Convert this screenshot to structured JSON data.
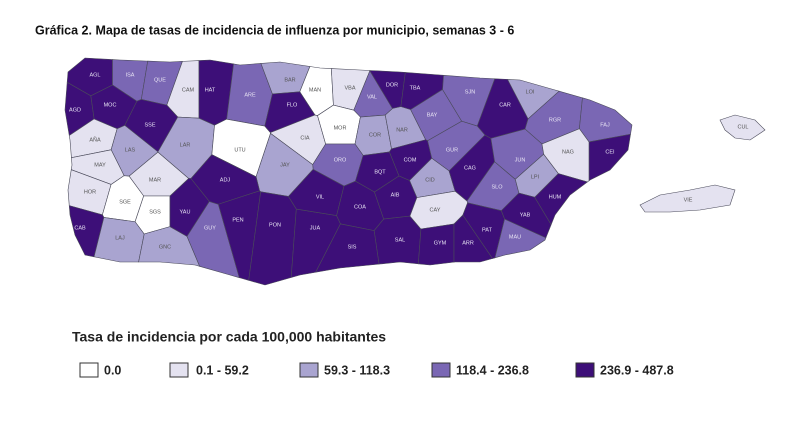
{
  "title": "Gráfica 2. Mapa de tasas de incidencia de influenza por municipio, semanas 3 - 6",
  "legend": {
    "title": "Tasa de incidencia por cada 100,000 habitantes",
    "items": [
      {
        "label": "0.0",
        "color": "#ffffff"
      },
      {
        "label": "0.1 - 59.2",
        "color": "#e4e2f0"
      },
      {
        "label": "59.3 - 118.3",
        "color": "#a9a4d0"
      },
      {
        "label": "118.4 - 236.8",
        "color": "#7a67b4"
      },
      {
        "label": "236.9 - 487.8",
        "color": "#3d0f78"
      }
    ]
  },
  "municipalities": [
    {
      "label": "AGL",
      "class": 4
    },
    {
      "label": "ISA",
      "class": 3
    },
    {
      "label": "QUE",
      "class": 3
    },
    {
      "label": "CAM",
      "class": 1
    },
    {
      "label": "HAT",
      "class": 4
    },
    {
      "label": "ARE",
      "class": 3
    },
    {
      "label": "BAR",
      "class": 2
    },
    {
      "label": "MAN",
      "class": 0
    },
    {
      "label": "VBA",
      "class": 1
    },
    {
      "label": "VAL",
      "class": 3
    },
    {
      "label": "DOR",
      "class": 4
    },
    {
      "label": "TBA",
      "class": 4
    },
    {
      "label": "BAY",
      "class": 3
    },
    {
      "label": "SJN",
      "class": 3
    },
    {
      "label": "CAR",
      "class": 4
    },
    {
      "label": "LOI",
      "class": 2
    },
    {
      "label": "RGR",
      "class": 3
    },
    {
      "label": "FAJ",
      "class": 3
    },
    {
      "label": "CEI",
      "class": 4
    },
    {
      "label": "AGD",
      "class": 4
    },
    {
      "label": "MOC",
      "class": 4
    },
    {
      "label": "SSE",
      "class": 4
    },
    {
      "label": "AÑA",
      "class": 1
    },
    {
      "label": "LAS",
      "class": 2
    },
    {
      "label": "MAY",
      "class": 1
    },
    {
      "label": "LAR",
      "class": 2
    },
    {
      "label": "UTU",
      "class": 0
    },
    {
      "label": "FLO",
      "class": 4
    },
    {
      "label": "CIA",
      "class": 1
    },
    {
      "label": "MOR",
      "class": 0
    },
    {
      "label": "COR",
      "class": 2
    },
    {
      "label": "NAR",
      "class": 2
    },
    {
      "label": "ORO",
      "class": 3
    },
    {
      "label": "JAY",
      "class": 2
    },
    {
      "label": "COM",
      "class": 4
    },
    {
      "label": "BQT",
      "class": 4
    },
    {
      "label": "GUR",
      "class": 3
    },
    {
      "label": "CID",
      "class": 2
    },
    {
      "label": "CAG",
      "class": 4
    },
    {
      "label": "SLO",
      "class": 3
    },
    {
      "label": "JUN",
      "class": 3
    },
    {
      "label": "LPI",
      "class": 2
    },
    {
      "label": "NAG",
      "class": 1
    },
    {
      "label": "HOR",
      "class": 1
    },
    {
      "label": "MAR",
      "class": 1
    },
    {
      "label": "SGE",
      "class": 0
    },
    {
      "label": "SGS",
      "class": 0
    },
    {
      "label": "CAB",
      "class": 4
    },
    {
      "label": "LAJ",
      "class": 2
    },
    {
      "label": "GNC",
      "class": 2
    },
    {
      "label": "YAU",
      "class": 4
    },
    {
      "label": "GUY",
      "class": 3
    },
    {
      "label": "ADJ",
      "class": 4
    },
    {
      "label": "PEN",
      "class": 4
    },
    {
      "label": "PON",
      "class": 4
    },
    {
      "label": "JUA",
      "class": 4
    },
    {
      "label": "VIL",
      "class": 4
    },
    {
      "label": "COA",
      "class": 4
    },
    {
      "label": "AIB",
      "class": 4
    },
    {
      "label": "SAL",
      "class": 4
    },
    {
      "label": "SIS",
      "class": 4
    },
    {
      "label": "CAY",
      "class": 1
    },
    {
      "label": "GYM",
      "class": 4
    },
    {
      "label": "ARR",
      "class": 4
    },
    {
      "label": "PAT",
      "class": 4
    },
    {
      "label": "MAU",
      "class": 3
    },
    {
      "label": "YAB",
      "class": 4
    },
    {
      "label": "HUM",
      "class": 4
    },
    {
      "label": "VIE",
      "class": 1
    },
    {
      "label": "CUL",
      "class": 1
    }
  ]
}
